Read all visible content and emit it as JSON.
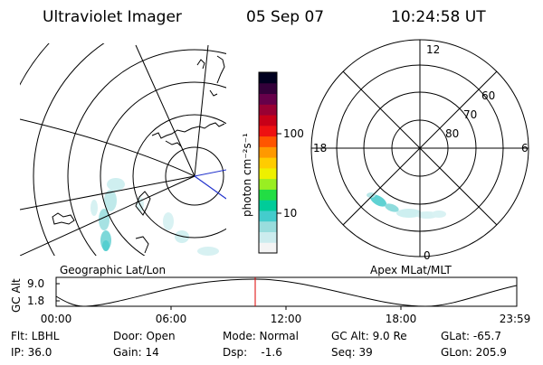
{
  "header": {
    "instrument": "Ultraviolet Imager",
    "date": "05 Sep 07",
    "time": "10:24:58 UT"
  },
  "geo_panel": {
    "caption": "Geographic Lat/Lon"
  },
  "mlt_panel": {
    "caption": "Apex MLat/MLT",
    "mlt_labels": {
      "top": "12",
      "bottom": "0",
      "left": "18",
      "right": "6"
    },
    "lat_labels": [
      "60",
      "70",
      "80"
    ]
  },
  "colorbar": {
    "unit_label": "photon cm⁻²s⁻¹",
    "ticks": [
      {
        "label": "100",
        "value": 100
      },
      {
        "label": "10",
        "value": 10
      }
    ],
    "colors": [
      "#f4f4f4",
      "#ccecee",
      "#99dddd",
      "#44cccc",
      "#00cc99",
      "#22dd44",
      "#99ee22",
      "#eef000",
      "#ffcc00",
      "#ff9900",
      "#ff5500",
      "#ee1111",
      "#c80018",
      "#990033",
      "#66004a",
      "#33003a",
      "#000020"
    ]
  },
  "altitude_strip": {
    "ylabel": "GC Alt",
    "yticks": [
      "9.0",
      "1.8"
    ],
    "xticks": [
      "00:00",
      "06:00",
      "12:00",
      "18:00",
      "23:59"
    ],
    "marker_color": "#dd0000"
  },
  "footer": {
    "col1": [
      "Flt: LBHL",
      "IP: 36.0"
    ],
    "col2": [
      "Door: Open",
      "Gain: 14"
    ],
    "col3": [
      "Mode: Normal",
      "Dsp:    -1.6"
    ],
    "col4": [
      "GC Alt: 9.0 Re",
      "Seq: 39"
    ],
    "col5": [
      "GLat: -65.7",
      "GLon: 205.9"
    ]
  }
}
